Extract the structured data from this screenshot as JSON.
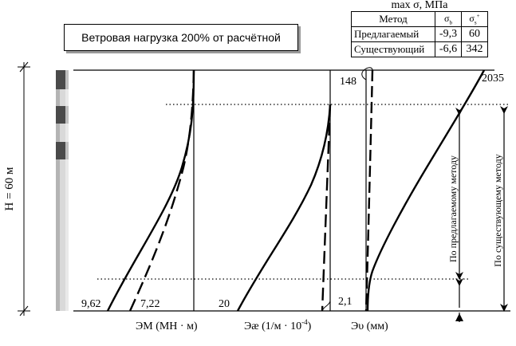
{
  "title": "Ветровая нагрузка 200% от расчётной",
  "stress_table": {
    "title": "max σ, МПа",
    "headers": [
      "Метод",
      "σ",
      "σ"
    ],
    "header_sub": [
      "",
      "b",
      "s"
    ],
    "header_sup": [
      "",
      "",
      "+"
    ],
    "rows": [
      {
        "method": "Предлагаемый",
        "sigma_b": "-9,3",
        "sigma_s": "60"
      },
      {
        "method": "Существующий",
        "sigma_b": "-6,6",
        "sigma_s": "342"
      }
    ]
  },
  "height_label": "H = 60 м",
  "panels": {
    "moment": {
      "xlabel": "ЭМ (МН · м)",
      "value_a": "9,62",
      "value_b": "7,22"
    },
    "curvature": {
      "xlabel": "Эæ (1/м · 10",
      "xlabel_sup": "-4",
      "xlabel_end": ")",
      "value_bottom": "20",
      "value_small": "2,1"
    },
    "deflection": {
      "xlabel": "Эυ (мм)",
      "value_top_left": "148",
      "value_top_right": "2035"
    }
  },
  "range_labels": {
    "proposed": "По предлагаемому методу",
    "existing": "По существующему методу"
  }
}
